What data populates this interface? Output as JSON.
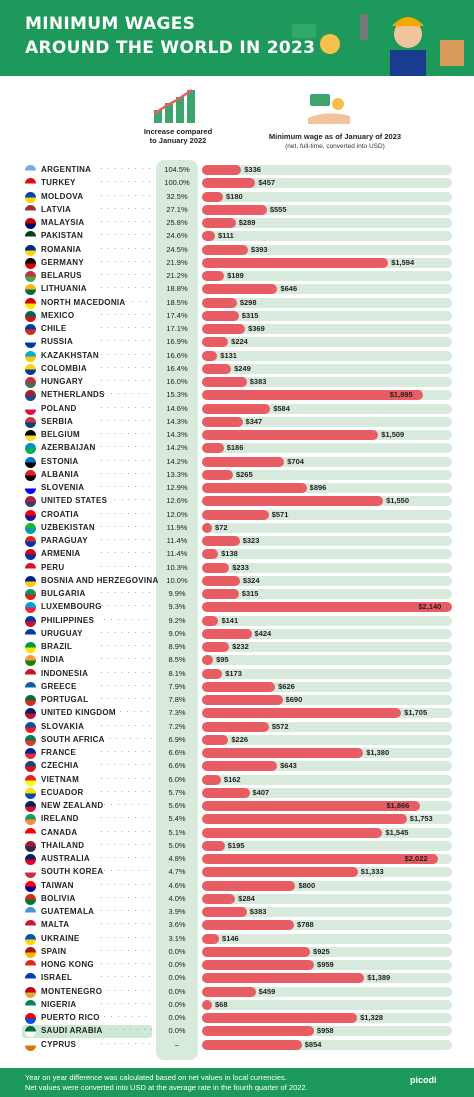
{
  "title_line1": "MINIMUM WAGES",
  "title_line2": "AROUND THE WORLD IN 2023",
  "col_increase_header": "Increase compared to January 2022",
  "col_wage_header": "Minimum wage as of January of 2023",
  "col_wage_subheader": "(net, full-time, converted into USD)",
  "footnote_line1": "Year on year difference was calculated based on net values in local currencies.",
  "footnote_line2": "Net values were converted into USD at the average rate in the fourth quarter of 2022.",
  "brand": "picodi",
  "highlight_country": "SAUDI ARABIA",
  "colors": {
    "header": "#1d9a5b",
    "bar": "#e85c63",
    "track": "#d8eadb"
  },
  "chart_data": {
    "type": "bar",
    "categories": [
      "ARGENTINA",
      "TURKEY",
      "MOLDOVA",
      "LATVIA",
      "MALAYSIA",
      "PAKISTAN",
      "ROMANIA",
      "GERMANY",
      "BELARUS",
      "LITHUANIA",
      "NORTH MACEDONIA",
      "MEXICO",
      "CHILE",
      "RUSSIA",
      "KAZAKHSTAN",
      "COLOMBIA",
      "HUNGARY",
      "NETHERLANDS",
      "POLAND",
      "SERBIA",
      "BELGIUM",
      "AZERBAIJAN",
      "ESTONIA",
      "ALBANIA",
      "SLOVENIA",
      "UNITED STATES",
      "CROATIA",
      "UZBEKISTAN",
      "PARAGUAY",
      "ARMENIA",
      "PERU",
      "BOSNIA AND HERZEGOVINA",
      "BULGARIA",
      "LUXEMBOURG",
      "PHILIPPINES",
      "URUGUAY",
      "BRAZIL",
      "INDIA",
      "INDONESIA",
      "GREECE",
      "PORTUGAL",
      "UNITED KINGDOM",
      "SLOVAKIA",
      "SOUTH AFRICA",
      "FRANCE",
      "CZECHIA",
      "VIETNAM",
      "ECUADOR",
      "NEW ZEALAND",
      "IRELAND",
      "CANADA",
      "THAILAND",
      "AUSTRALIA",
      "SOUTH KOREA",
      "TAIWAN",
      "BOLIVIA",
      "GUATEMALA",
      "MALTA",
      "UKRAINE",
      "SPAIN",
      "HONG KONG",
      "ISRAEL",
      "MONTENEGRO",
      "NIGERIA",
      "PUERTO RICO",
      "SAUDI ARABIA",
      "CYPRUS"
    ],
    "increase_labels": [
      "104.5%",
      "100.0%",
      "32.5%",
      "27.1%",
      "25.8%",
      "24.6%",
      "24.5%",
      "21.9%",
      "21.2%",
      "18.8%",
      "18.5%",
      "17.4%",
      "17.1%",
      "16.9%",
      "16.6%",
      "16.4%",
      "16.0%",
      "15.3%",
      "14.6%",
      "14.3%",
      "14.3%",
      "14.2%",
      "14.2%",
      "13.3%",
      "12.9%",
      "12.6%",
      "12.0%",
      "11.9%",
      "11.4%",
      "11.4%",
      "10.3%",
      "10.0%",
      "9.9%",
      "9.3%",
      "9.2%",
      "9.0%",
      "8.9%",
      "8.5%",
      "8.1%",
      "7.9%",
      "7.8%",
      "7.3%",
      "7.2%",
      "6.9%",
      "6.6%",
      "6.6%",
      "6.0%",
      "5.7%",
      "5.6%",
      "5.4%",
      "5.1%",
      "5.0%",
      "4.8%",
      "4.7%",
      "4.6%",
      "4.0%",
      "3.9%",
      "3.6%",
      "3.1%",
      "0.0%",
      "0.0%",
      "0.0%",
      "0.0%",
      "0.0%",
      "0.0%",
      "0.0%",
      "–"
    ],
    "values": [
      336,
      457,
      180,
      555,
      289,
      111,
      393,
      1594,
      189,
      646,
      298,
      315,
      369,
      224,
      131,
      249,
      383,
      1895,
      584,
      347,
      1509,
      186,
      704,
      265,
      896,
      1550,
      571,
      72,
      323,
      138,
      233,
      324,
      315,
      2140,
      141,
      424,
      232,
      95,
      173,
      626,
      690,
      1705,
      572,
      226,
      1380,
      643,
      162,
      407,
      1866,
      1753,
      1545,
      195,
      2022,
      1333,
      800,
      284,
      383,
      788,
      146,
      925,
      959,
      1389,
      459,
      68,
      1328,
      958,
      854
    ],
    "value_labels": [
      "$336",
      "$457",
      "$180",
      "$555",
      "$289",
      "$111",
      "$393",
      "$1,594",
      "$189",
      "$646",
      "$298",
      "$315",
      "$369",
      "$224",
      "$131",
      "$249",
      "$383",
      "$1,895",
      "$584",
      "$347",
      "$1,509",
      "$186",
      "$704",
      "$265",
      "$896",
      "$1,550",
      "$571",
      "$72",
      "$323",
      "$138",
      "$233",
      "$324",
      "$315",
      "$2,140",
      "$141",
      "$424",
      "$232",
      "$95",
      "$173",
      "$626",
      "$690",
      "$1,705",
      "$572",
      "$226",
      "$1,380",
      "$643",
      "$162",
      "$407",
      "$1,866",
      "$1,753",
      "$1,545",
      "$195",
      "$2,022",
      "$1,333",
      "$800",
      "$284",
      "$383",
      "$788",
      "$146",
      "$925",
      "$959",
      "$1,389",
      "$459",
      "$68",
      "$1,328",
      "$958",
      "$854"
    ],
    "flag_colors": [
      [
        "#74acdf",
        "#ffffff"
      ],
      [
        "#e30a17",
        "#ffffff"
      ],
      [
        "#0046ae",
        "#ffd200"
      ],
      [
        "#9e3039",
        "#ffffff"
      ],
      [
        "#cc0001",
        "#010066"
      ],
      [
        "#01411c",
        "#ffffff"
      ],
      [
        "#002b7f",
        "#fcd116"
      ],
      [
        "#000000",
        "#dd0000"
      ],
      [
        "#c8313e",
        "#4aa657"
      ],
      [
        "#fdb913",
        "#006a44"
      ],
      [
        "#d20000",
        "#ffe600"
      ],
      [
        "#006847",
        "#ce1126"
      ],
      [
        "#0039a6",
        "#d52b1e"
      ],
      [
        "#ffffff",
        "#0039a6"
      ],
      [
        "#00afca",
        "#fec50c"
      ],
      [
        "#fcd116",
        "#003893"
      ],
      [
        "#cd2a3e",
        "#436f4d"
      ],
      [
        "#ae1c28",
        "#21468b"
      ],
      [
        "#ffffff",
        "#dc143c"
      ],
      [
        "#c6363c",
        "#0c4076"
      ],
      [
        "#000000",
        "#fdda24"
      ],
      [
        "#0092bc",
        "#00b04f"
      ],
      [
        "#0072ce",
        "#000000"
      ],
      [
        "#e41e20",
        "#000000"
      ],
      [
        "#ffffff",
        "#0000ff"
      ],
      [
        "#b22234",
        "#3c3b6e"
      ],
      [
        "#ff0000",
        "#171796"
      ],
      [
        "#1eb53a",
        "#0099b5"
      ],
      [
        "#d52b1e",
        "#0038a8"
      ],
      [
        "#d90012",
        "#0033a0"
      ],
      [
        "#d91023",
        "#ffffff"
      ],
      [
        "#002395",
        "#fecb00"
      ],
      [
        "#00966e",
        "#d62612"
      ],
      [
        "#00a1de",
        "#ed2939"
      ],
      [
        "#0038a8",
        "#ce1126"
      ],
      [
        "#0038a8",
        "#ffffff"
      ],
      [
        "#009c3b",
        "#ffdf00"
      ],
      [
        "#ff9933",
        "#138808"
      ],
      [
        "#ce1126",
        "#ffffff"
      ],
      [
        "#0d5eaf",
        "#ffffff"
      ],
      [
        "#046a38",
        "#da291c"
      ],
      [
        "#012169",
        "#c8102e"
      ],
      [
        "#0b4ea2",
        "#ee1c25"
      ],
      [
        "#007a4d",
        "#de3831"
      ],
      [
        "#002395",
        "#ed2939"
      ],
      [
        "#11457e",
        "#d7141a"
      ],
      [
        "#da251d",
        "#ffff00"
      ],
      [
        "#ffdd00",
        "#034ea2"
      ],
      [
        "#012169",
        "#cc142b"
      ],
      [
        "#169b62",
        "#ff883e"
      ],
      [
        "#ff0000",
        "#ffffff"
      ],
      [
        "#a51931",
        "#2d2a4a"
      ],
      [
        "#012169",
        "#e4002b"
      ],
      [
        "#ffffff",
        "#cd2e3a"
      ],
      [
        "#fe0000",
        "#000095"
      ],
      [
        "#d52b1e",
        "#007934"
      ],
      [
        "#4997d0",
        "#ffffff"
      ],
      [
        "#cf142b",
        "#ffffff"
      ],
      [
        "#0057b7",
        "#ffd700"
      ],
      [
        "#aa151b",
        "#f1bf00"
      ],
      [
        "#de2910",
        "#ffffff"
      ],
      [
        "#0038b8",
        "#ffffff"
      ],
      [
        "#c40308",
        "#d4af3a"
      ],
      [
        "#008751",
        "#ffffff"
      ],
      [
        "#ed0000",
        "#0050f0"
      ],
      [
        "#006c35",
        "#ffffff"
      ],
      [
        "#ffffff",
        "#d57800"
      ]
    ]
  }
}
